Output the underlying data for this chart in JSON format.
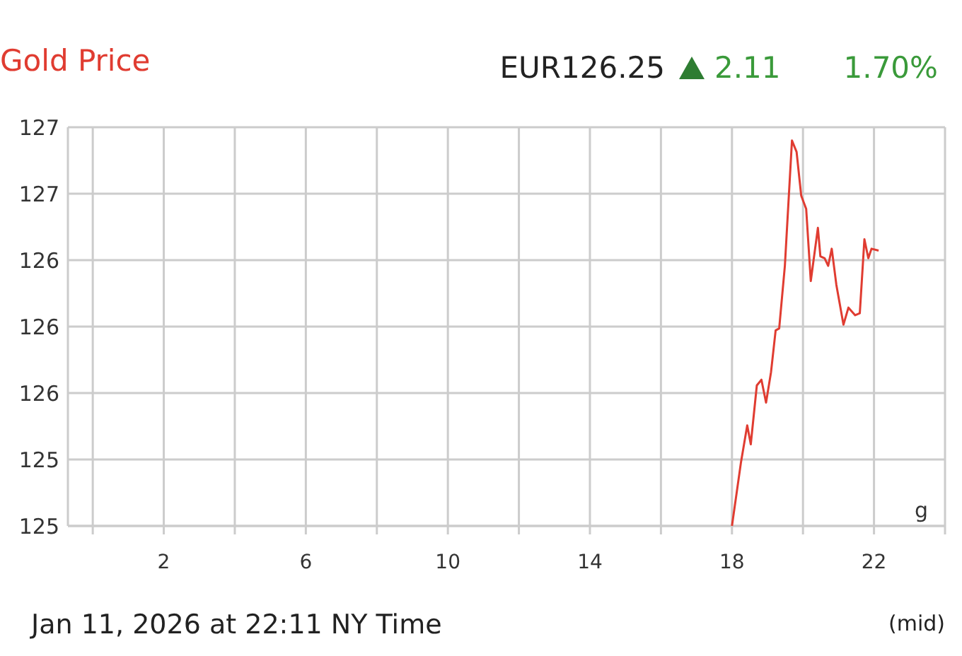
{
  "chart_data": {
    "type": "line",
    "title": "Gold Price",
    "annotations": [
      "EUR126.25",
      "2.11",
      "1.70%",
      "Jan 11, 2026 at 22:11 NY Time",
      "(mid)",
      "g"
    ],
    "xlim": [
      -0.7,
      24
    ],
    "ylim": [
      124.8,
      126.9
    ],
    "xticks": [
      {
        "value": 0,
        "label": null
      },
      2,
      {
        "value": 4,
        "label": null
      },
      6,
      {
        "value": 8,
        "label": null
      },
      10,
      {
        "value": 12,
        "label": null
      },
      14,
      {
        "value": 16,
        "label": null
      },
      18,
      {
        "value": 20,
        "label": null
      },
      22,
      {
        "value": 24,
        "label": null
      }
    ],
    "yticks": [
      {
        "value": 124.8,
        "label": "125"
      },
      {
        "value": 125.15,
        "label": "125"
      },
      {
        "value": 125.5,
        "label": "126"
      },
      {
        "value": 125.85,
        "label": "126"
      },
      {
        "value": 126.2,
        "label": "126"
      },
      {
        "value": 126.55,
        "label": "127"
      },
      {
        "value": 126.9,
        "label": "127"
      }
    ],
    "grid": true,
    "marker": "none",
    "line_style": "solid",
    "series": [
      {
        "color": "#e03c31",
        "x": [
          18.0,
          18.25,
          18.43,
          18.53,
          18.7,
          18.83,
          18.96,
          19.1,
          19.23,
          19.33,
          19.49,
          19.69,
          19.82,
          19.95,
          20.09,
          20.22,
          20.42,
          20.49,
          20.61,
          20.71,
          20.81,
          20.94,
          21.14,
          21.28,
          21.47,
          21.6,
          21.73,
          21.84,
          21.93,
          22.13
        ],
        "values": [
          124.8,
          125.13,
          125.33,
          125.23,
          125.54,
          125.57,
          125.45,
          125.61,
          125.83,
          125.84,
          126.17,
          126.83,
          126.77,
          126.54,
          126.47,
          126.09,
          126.37,
          126.22,
          126.21,
          126.17,
          126.26,
          126.07,
          125.86,
          125.95,
          125.91,
          125.92,
          126.31,
          126.21,
          126.26,
          126.25
        ]
      }
    ]
  }
}
